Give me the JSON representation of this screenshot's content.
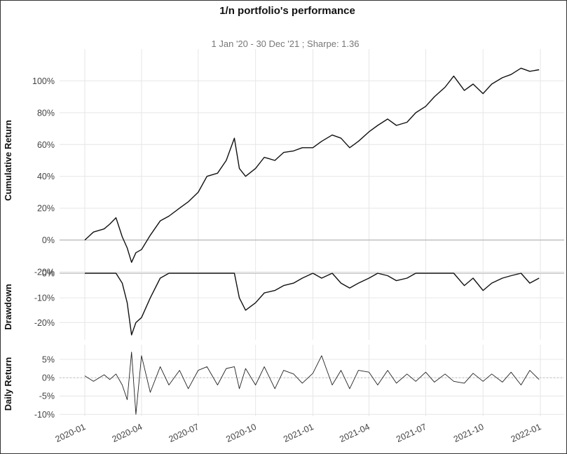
{
  "chart_data": {
    "type": "line",
    "title": "1/n portfolio's performance",
    "subtitle": "1 Jan '20 - 30 Dec '21 ;  Sharpe: 1.36",
    "x_ticks": [
      "2020-01",
      "2020-04",
      "2020-07",
      "2020-10",
      "2021-01",
      "2021-04",
      "2021-07",
      "2021-10",
      "2022-01"
    ],
    "x": [
      "2020-01-01",
      "2020-01-15",
      "2020-02-01",
      "2020-02-10",
      "2020-02-20",
      "2020-03-01",
      "2020-03-09",
      "2020-03-16",
      "2020-03-23",
      "2020-04-01",
      "2020-04-15",
      "2020-05-01",
      "2020-05-15",
      "2020-06-01",
      "2020-06-15",
      "2020-07-01",
      "2020-07-15",
      "2020-08-01",
      "2020-08-15",
      "2020-08-28",
      "2020-09-05",
      "2020-09-15",
      "2020-10-01",
      "2020-10-15",
      "2020-11-01",
      "2020-11-15",
      "2020-12-01",
      "2020-12-15",
      "2021-01-01",
      "2021-01-15",
      "2021-02-01",
      "2021-02-15",
      "2021-03-01",
      "2021-03-15",
      "2021-04-01",
      "2021-04-15",
      "2021-05-01",
      "2021-05-15",
      "2021-06-01",
      "2021-06-15",
      "2021-07-01",
      "2021-07-15",
      "2021-08-01",
      "2021-08-15",
      "2021-09-01",
      "2021-09-15",
      "2021-10-01",
      "2021-10-15",
      "2021-11-01",
      "2021-11-15",
      "2021-12-01",
      "2021-12-15",
      "2021-12-30"
    ],
    "panels": [
      {
        "ylabel": "Cumulative Return",
        "ylim": [
          -0.2,
          1.2
        ],
        "yticks": [
          -0.2,
          0,
          0.2,
          0.4,
          0.6,
          0.8,
          1.0
        ],
        "ytick_labels": [
          "-20%",
          "0%",
          "20%",
          "40%",
          "60%",
          "80%",
          "100%"
        ],
        "values": [
          0.0,
          0.05,
          0.07,
          0.1,
          0.14,
          0.02,
          -0.05,
          -0.14,
          -0.08,
          -0.06,
          0.03,
          0.12,
          0.15,
          0.2,
          0.24,
          0.3,
          0.4,
          0.42,
          0.5,
          0.64,
          0.45,
          0.4,
          0.45,
          0.52,
          0.5,
          0.55,
          0.56,
          0.58,
          0.58,
          0.62,
          0.66,
          0.64,
          0.58,
          0.62,
          0.68,
          0.72,
          0.76,
          0.72,
          0.74,
          0.8,
          0.84,
          0.9,
          0.96,
          1.03,
          0.94,
          0.98,
          0.92,
          0.98,
          1.02,
          1.04,
          1.08,
          1.06,
          1.07
        ]
      },
      {
        "ylabel": "Drawdown",
        "ylim": [
          -0.27,
          0
        ],
        "yticks": [
          0,
          -0.1,
          -0.2
        ],
        "ytick_labels": [
          "0%",
          "-10%",
          "-20%"
        ],
        "values": [
          0.0,
          0.0,
          0.0,
          0.0,
          0.0,
          -0.04,
          -0.12,
          -0.25,
          -0.2,
          -0.18,
          -0.1,
          -0.02,
          0.0,
          0.0,
          0.0,
          0.0,
          0.0,
          0.0,
          0.0,
          0.0,
          -0.1,
          -0.15,
          -0.12,
          -0.08,
          -0.07,
          -0.05,
          -0.04,
          -0.02,
          0.0,
          -0.02,
          0.0,
          -0.04,
          -0.06,
          -0.04,
          -0.02,
          0.0,
          -0.01,
          -0.03,
          -0.02,
          0.0,
          0.0,
          0.0,
          0.0,
          0.0,
          -0.05,
          -0.02,
          -0.07,
          -0.04,
          -0.02,
          -0.01,
          0.0,
          -0.04,
          -0.02
        ]
      },
      {
        "ylabel": "Daily Return",
        "ylim": [
          -0.105,
          0.09
        ],
        "yticks": [
          0.05,
          0,
          -0.05,
          -0.1
        ],
        "ytick_labels": [
          "5%",
          "0%",
          "-5%",
          "-10%"
        ],
        "values": [
          0.005,
          -0.01,
          0.008,
          -0.005,
          0.01,
          -0.02,
          -0.06,
          0.07,
          -0.1,
          0.06,
          -0.04,
          0.03,
          -0.02,
          0.02,
          -0.03,
          0.02,
          0.03,
          -0.02,
          0.025,
          0.03,
          -0.03,
          0.025,
          -0.02,
          0.03,
          -0.03,
          0.02,
          0.01,
          -0.015,
          0.012,
          0.06,
          -0.02,
          0.02,
          -0.03,
          0.02,
          0.015,
          -0.02,
          0.02,
          -0.015,
          0.01,
          -0.01,
          0.015,
          -0.012,
          0.01,
          -0.01,
          -0.015,
          0.012,
          -0.01,
          0.01,
          -0.012,
          0.015,
          -0.02,
          0.02,
          -0.005
        ]
      }
    ],
    "x_range": [
      "2020-01-01",
      "2022-01-01"
    ],
    "grid": true,
    "legend": "none"
  }
}
